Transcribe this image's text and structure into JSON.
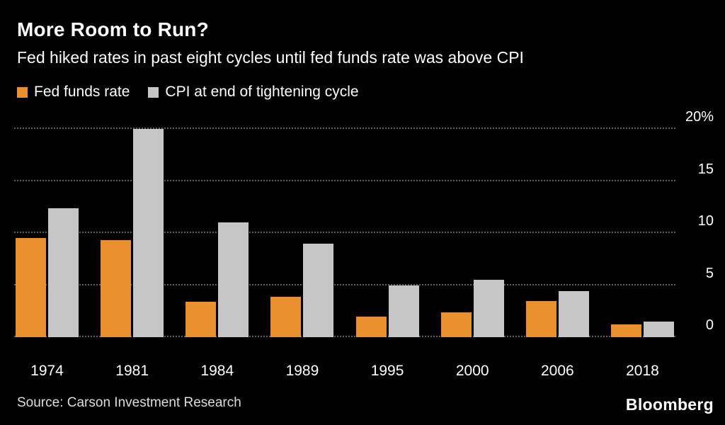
{
  "header": {
    "title": "More Room to Run?",
    "subtitle": "Fed hiked rates in past eight cycles until fed funds rate was above CPI"
  },
  "legend": [
    {
      "label": "Fed funds rate",
      "color": "#e8912d"
    },
    {
      "label": "CPI at end of tightening cycle",
      "color": "#c6c6c6"
    }
  ],
  "chart_data": {
    "type": "bar",
    "title": "More Room to Run?",
    "subtitle": "Fed hiked rates in past eight cycles until fed funds rate was above CPI",
    "categories": [
      "1974",
      "1981",
      "1984",
      "1989",
      "1995",
      "2000",
      "2006",
      "2018"
    ],
    "series": [
      {
        "name": "Fed funds rate",
        "color": "#e8912d",
        "values": [
          9.5,
          9.3,
          3.4,
          3.9,
          2.0,
          2.4,
          3.5,
          1.2
        ]
      },
      {
        "name": "CPI at end of tightening cycle",
        "color": "#c6c6c6",
        "values": [
          12.4,
          20.0,
          11.0,
          9.0,
          5.0,
          5.5,
          4.4,
          1.5
        ]
      }
    ],
    "xlabel": "",
    "ylabel": "%",
    "ylim": [
      0,
      20
    ],
    "yticks": [
      {
        "value": 0,
        "label": "0"
      },
      {
        "value": 5,
        "label": "5"
      },
      {
        "value": 10,
        "label": "10"
      },
      {
        "value": 15,
        "label": "15"
      },
      {
        "value": 20,
        "label": "20%"
      }
    ],
    "grid": "horizontal-dotted",
    "legend_position": "top-left"
  },
  "colors": {
    "background": "#000000",
    "text": "#ffffff",
    "gridline": "#5f5f5f",
    "source_text": "#dddddd"
  },
  "footer": {
    "source": "Source: Carson Investment Research",
    "brand": "Bloomberg"
  }
}
